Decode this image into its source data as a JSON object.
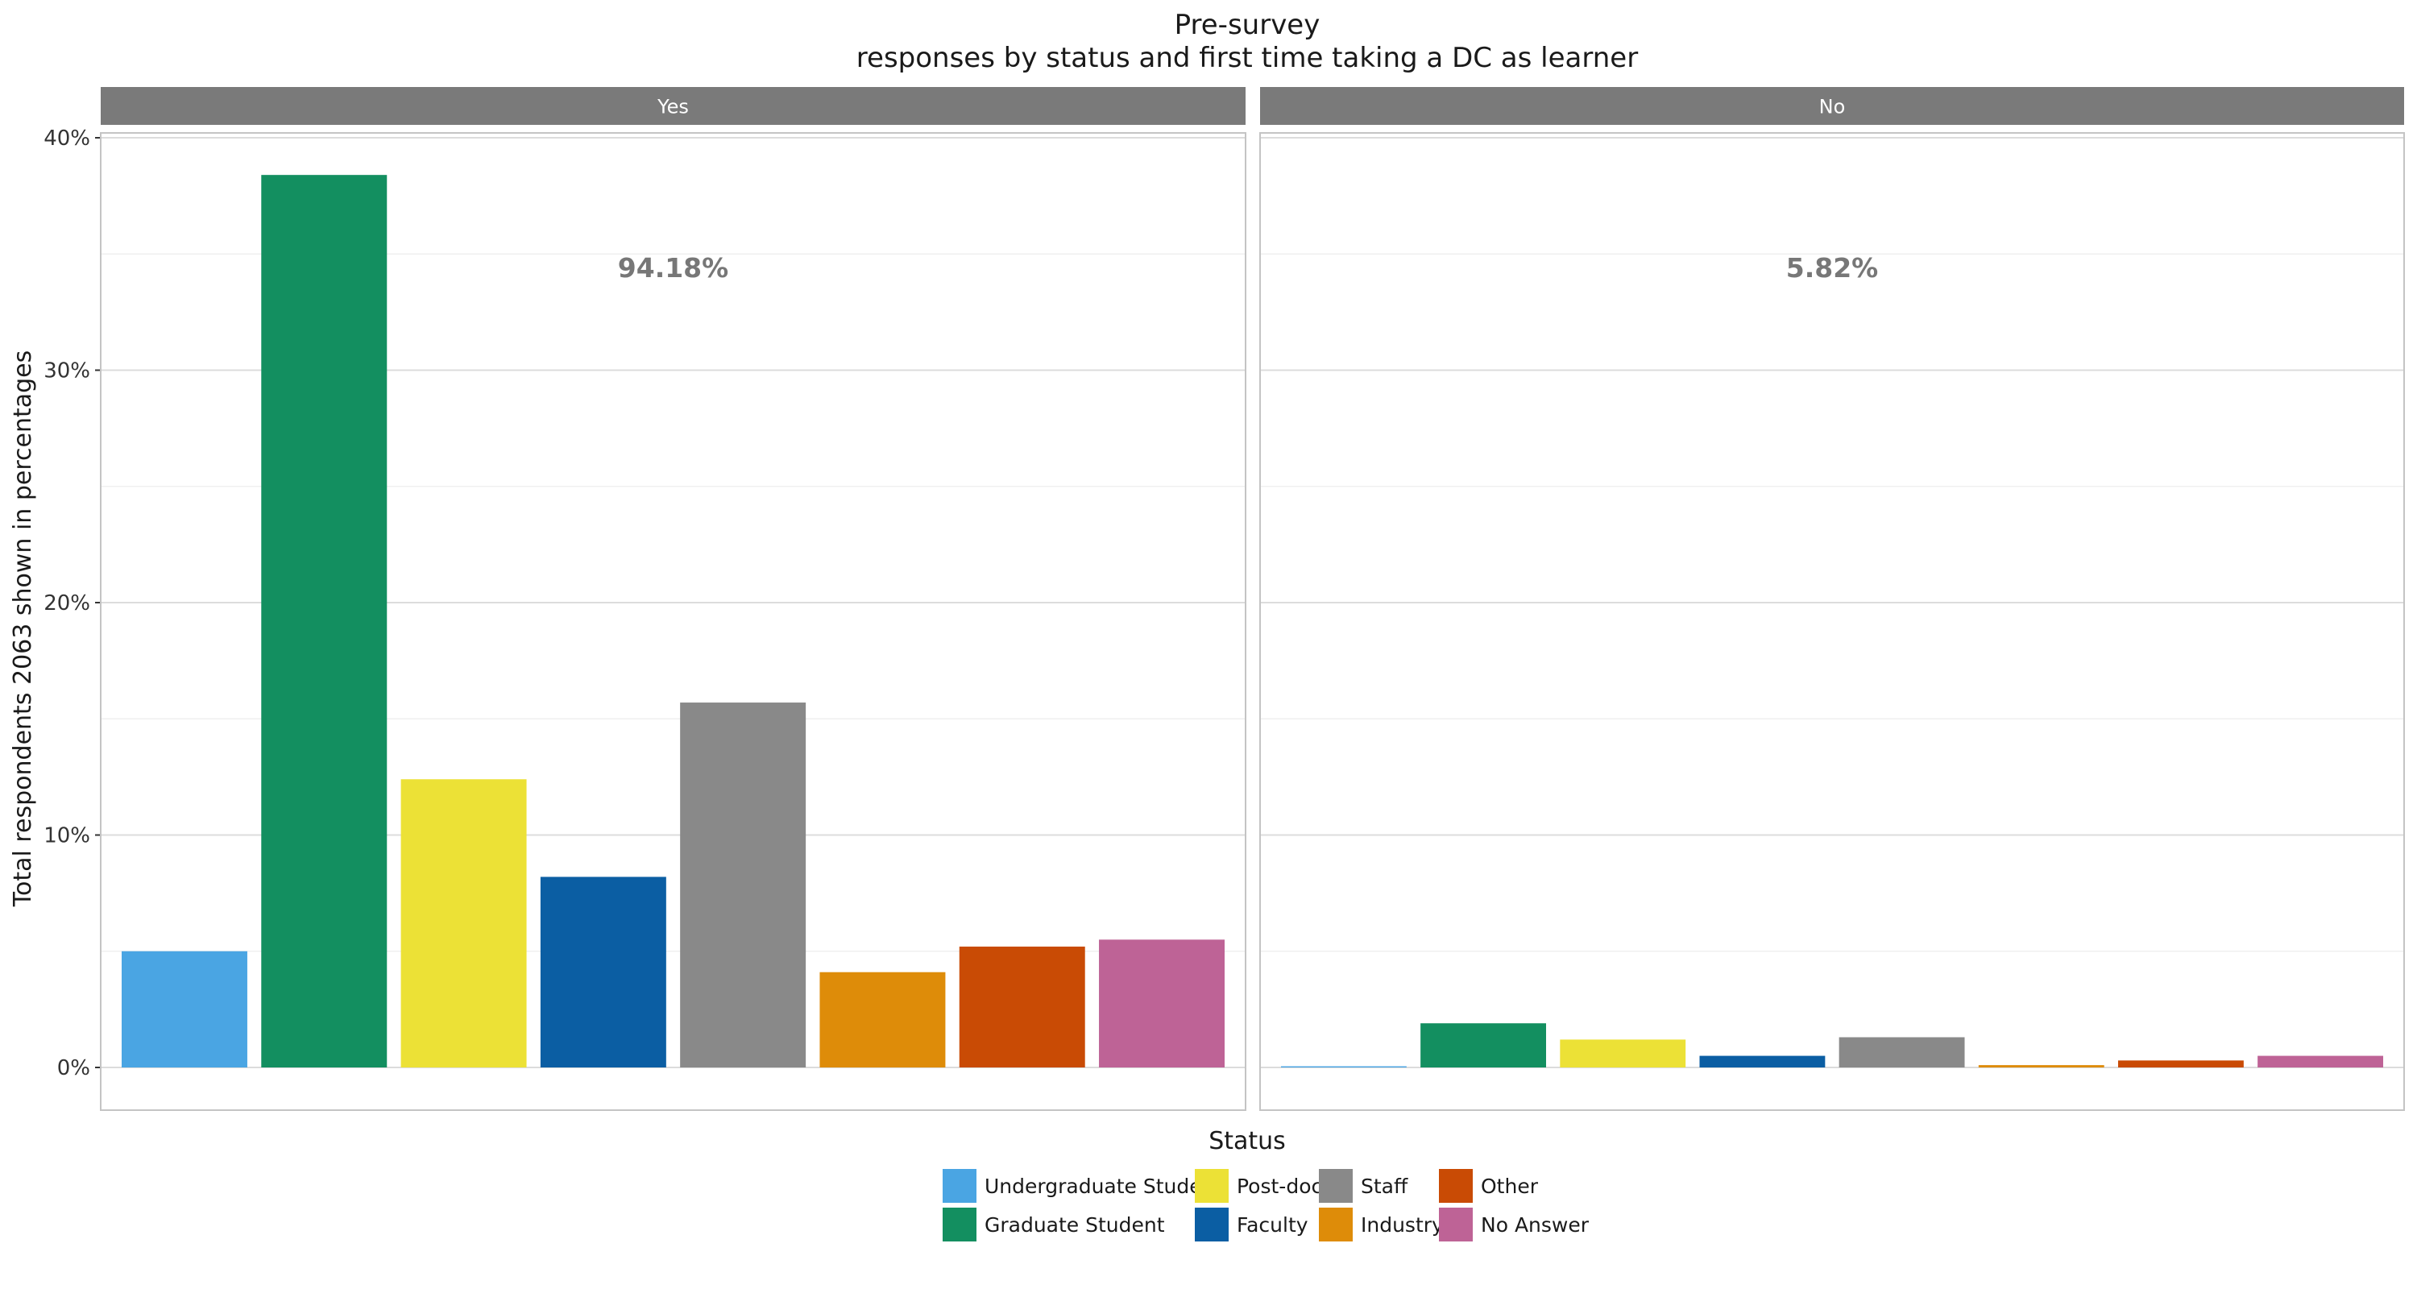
{
  "chart_data": {
    "type": "bar",
    "title": "Pre-survey",
    "subtitle": "responses by status and first time taking a DC as learner",
    "xlabel": "Status",
    "ylabel": "Total respondents 2063 shown in percentages",
    "ylim": [
      0,
      40
    ],
    "yticks": [
      0,
      10,
      20,
      30,
      40
    ],
    "ytick_labels": [
      "0%",
      "10%",
      "20%",
      "30%",
      "40%"
    ],
    "grid": true,
    "legend_position": "bottom",
    "categories": [
      "Undergraduate Student",
      "Graduate Student",
      "Post-doc",
      "Faculty",
      "Staff",
      "Industry",
      "Other",
      "No Answer"
    ],
    "colors": [
      "#4aa5e3",
      "#138f60",
      "#ece136",
      "#0b5ea3",
      "#898989",
      "#de8c09",
      "#c94b05",
      "#be6396"
    ],
    "facets": [
      {
        "label": "Yes",
        "annotation": "94.18%",
        "values": [
          5.0,
          38.4,
          12.4,
          8.2,
          15.7,
          4.1,
          5.2,
          5.5
        ]
      },
      {
        "label": "No",
        "annotation": "5.82%",
        "values": [
          0.05,
          1.9,
          1.2,
          0.5,
          1.3,
          0.1,
          0.3,
          0.5
        ]
      }
    ],
    "legend": {
      "columns": [
        [
          "Undergraduate Student",
          "Graduate Student"
        ],
        [
          "Post-doc",
          "Faculty"
        ],
        [
          "Staff",
          "Industry"
        ],
        [
          "Other",
          "No Answer"
        ]
      ]
    }
  }
}
